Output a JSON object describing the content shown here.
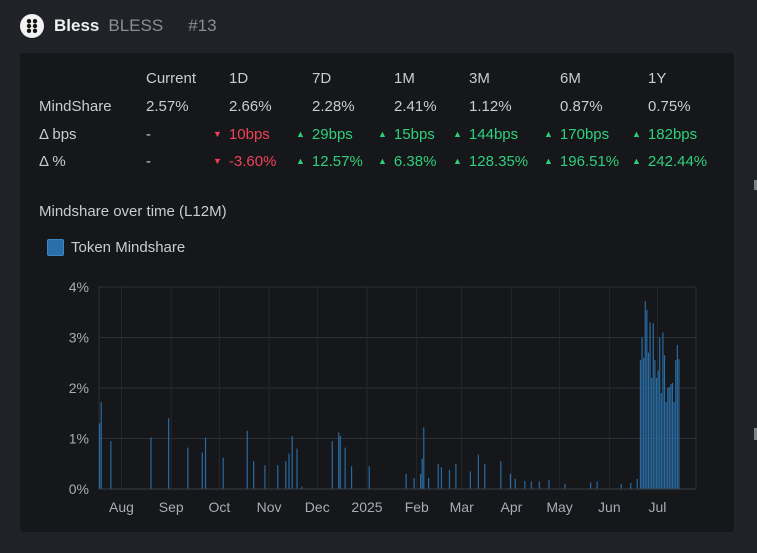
{
  "header": {
    "name": "Bless",
    "ticker": "BLESS",
    "rank": "#13",
    "logo_icon": "bless-logo-icon"
  },
  "table": {
    "columns": [
      "Current",
      "1D",
      "7D",
      "1M",
      "3M",
      "6M",
      "1Y"
    ],
    "rows": [
      {
        "label": "MindShare",
        "cells": [
          {
            "text": "2.57%",
            "dir": "none"
          },
          {
            "text": "2.66%",
            "dir": "none"
          },
          {
            "text": "2.28%",
            "dir": "none"
          },
          {
            "text": "2.41%",
            "dir": "none"
          },
          {
            "text": "1.12%",
            "dir": "none"
          },
          {
            "text": "0.87%",
            "dir": "none"
          },
          {
            "text": "0.75%",
            "dir": "none"
          }
        ]
      },
      {
        "label": "Δ bps",
        "cells": [
          {
            "text": "-",
            "dir": "none"
          },
          {
            "text": "10bps",
            "dir": "down"
          },
          {
            "text": "29bps",
            "dir": "up"
          },
          {
            "text": "15bps",
            "dir": "up"
          },
          {
            "text": "144bps",
            "dir": "up"
          },
          {
            "text": "170bps",
            "dir": "up"
          },
          {
            "text": "182bps",
            "dir": "up"
          }
        ]
      },
      {
        "label": "Δ %",
        "cells": [
          {
            "text": "-",
            "dir": "none"
          },
          {
            "text": "-3.60%",
            "dir": "down"
          },
          {
            "text": "12.57%",
            "dir": "up"
          },
          {
            "text": "6.38%",
            "dir": "up"
          },
          {
            "text": "128.35%",
            "dir": "up"
          },
          {
            "text": "196.51%",
            "dir": "up"
          },
          {
            "text": "242.44%",
            "dir": "up"
          }
        ]
      }
    ],
    "colors": {
      "up": "#2fd07c",
      "down": "#ef4156"
    }
  },
  "chart_section": {
    "title": "Mindshare over time (L12M)"
  },
  "chart_data": {
    "type": "bar",
    "series": [
      {
        "name": "Token Mindshare",
        "color": "#2a6fa8"
      }
    ],
    "y_ticks": [
      "0%",
      "1%",
      "2%",
      "3%",
      "4%"
    ],
    "ylim": [
      0,
      4
    ],
    "x_ticks": [
      "Aug",
      "Sep",
      "Oct",
      "Nov",
      "Dec",
      "2025",
      "Feb",
      "Mar",
      "Apr",
      "May",
      "Jun",
      "Jul"
    ],
    "x_tick_days": [
      14,
      45,
      75,
      106,
      136,
      167,
      198,
      226,
      257,
      287,
      318,
      348
    ],
    "x_domain_days": [
      0,
      372
    ],
    "grid": true,
    "bars": [
      {
        "day": 0,
        "value": 1.3
      },
      {
        "day": 1,
        "value": 1.72
      },
      {
        "day": 7,
        "value": 0.95
      },
      {
        "day": 32,
        "value": 1.02
      },
      {
        "day": 43,
        "value": 1.4
      },
      {
        "day": 55,
        "value": 0.82
      },
      {
        "day": 64,
        "value": 0.72
      },
      {
        "day": 66,
        "value": 1.02
      },
      {
        "day": 77,
        "value": 0.62
      },
      {
        "day": 92,
        "value": 1.15
      },
      {
        "day": 96,
        "value": 0.55
      },
      {
        "day": 103,
        "value": 0.47
      },
      {
        "day": 111,
        "value": 0.47
      },
      {
        "day": 116,
        "value": 0.55
      },
      {
        "day": 118,
        "value": 0.7
      },
      {
        "day": 120,
        "value": 1.05
      },
      {
        "day": 123,
        "value": 0.8
      },
      {
        "day": 126,
        "value": 0.05
      },
      {
        "day": 145,
        "value": 0.95
      },
      {
        "day": 149,
        "value": 1.12
      },
      {
        "day": 150,
        "value": 1.05
      },
      {
        "day": 153,
        "value": 0.82
      },
      {
        "day": 157,
        "value": 0.45
      },
      {
        "day": 168,
        "value": 0.45
      },
      {
        "day": 191,
        "value": 0.3
      },
      {
        "day": 196,
        "value": 0.22
      },
      {
        "day": 200,
        "value": 0.3
      },
      {
        "day": 201,
        "value": 0.6
      },
      {
        "day": 202,
        "value": 1.22
      },
      {
        "day": 205,
        "value": 0.22
      },
      {
        "day": 211,
        "value": 0.5
      },
      {
        "day": 213,
        "value": 0.43
      },
      {
        "day": 218,
        "value": 0.38
      },
      {
        "day": 222,
        "value": 0.5
      },
      {
        "day": 231,
        "value": 0.35
      },
      {
        "day": 236,
        "value": 0.68
      },
      {
        "day": 240,
        "value": 0.5
      },
      {
        "day": 250,
        "value": 0.55
      },
      {
        "day": 256,
        "value": 0.3
      },
      {
        "day": 259,
        "value": 0.2
      },
      {
        "day": 265,
        "value": 0.16
      },
      {
        "day": 269,
        "value": 0.15
      },
      {
        "day": 274,
        "value": 0.15
      },
      {
        "day": 280,
        "value": 0.18
      },
      {
        "day": 290,
        "value": 0.1
      },
      {
        "day": 306,
        "value": 0.13
      },
      {
        "day": 310,
        "value": 0.15
      },
      {
        "day": 325,
        "value": 0.1
      },
      {
        "day": 331,
        "value": 0.12
      },
      {
        "day": 335,
        "value": 0.2
      },
      {
        "day": 337,
        "value": 2.55
      },
      {
        "day": 338,
        "value": 3.0
      },
      {
        "day": 339,
        "value": 2.6
      },
      {
        "day": 340,
        "value": 3.72
      },
      {
        "day": 341,
        "value": 3.55
      },
      {
        "day": 342,
        "value": 2.7
      },
      {
        "day": 343,
        "value": 3.3
      },
      {
        "day": 344,
        "value": 2.2
      },
      {
        "day": 345,
        "value": 3.28
      },
      {
        "day": 346,
        "value": 2.55
      },
      {
        "day": 347,
        "value": 2.2
      },
      {
        "day": 348,
        "value": 2.35
      },
      {
        "day": 349,
        "value": 3.0
      },
      {
        "day": 350,
        "value": 1.9
      },
      {
        "day": 351,
        "value": 3.1
      },
      {
        "day": 352,
        "value": 2.65
      },
      {
        "day": 353,
        "value": 1.72
      },
      {
        "day": 354,
        "value": 2.0
      },
      {
        "day": 355,
        "value": 2.02
      },
      {
        "day": 356,
        "value": 2.08
      },
      {
        "day": 357,
        "value": 2.1
      },
      {
        "day": 358,
        "value": 1.72
      },
      {
        "day": 359,
        "value": 2.55
      },
      {
        "day": 360,
        "value": 2.85
      },
      {
        "day": 361,
        "value": 2.57
      }
    ]
  }
}
